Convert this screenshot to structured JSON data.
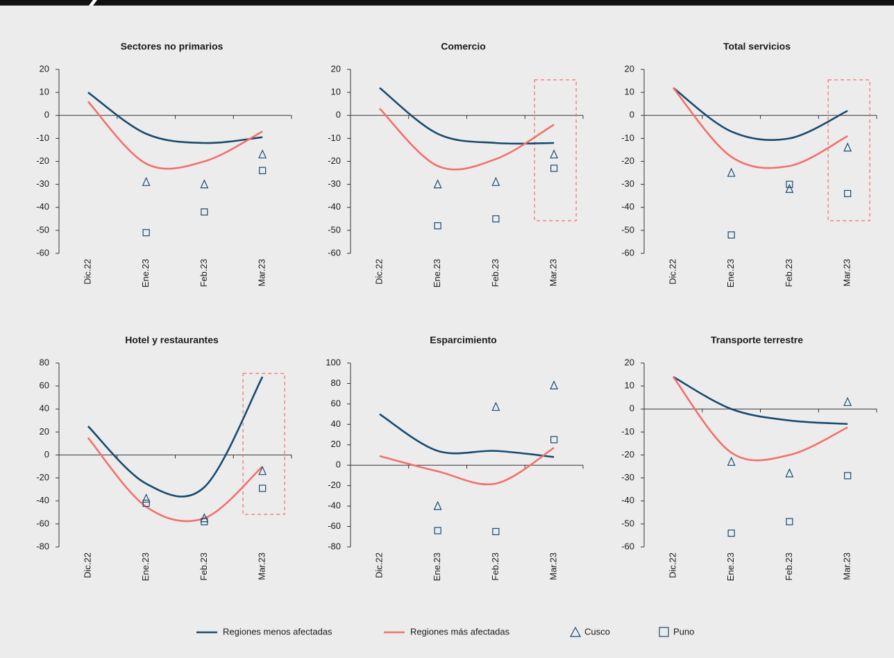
{
  "chart_data": [
    {
      "type": "line",
      "title": "Sectores no primarios",
      "categories": [
        "Dic.22",
        "Ene.23",
        "Feb.23",
        "Mar.23"
      ],
      "series": [
        {
          "name": "Regiones menos afectadas",
          "color": "#174a6e",
          "values": [
            10,
            -8,
            -12,
            -9.5
          ]
        },
        {
          "name": "Regiones más afectadas",
          "color": "#f2706a",
          "values": [
            6,
            -21,
            -20,
            -7
          ]
        },
        {
          "name": "Cusco",
          "color": "#174a6e",
          "marker": "triangle",
          "values": [
            null,
            -29,
            -30,
            -17
          ]
        },
        {
          "name": "Puno",
          "color": "#174a6e",
          "marker": "square",
          "values": [
            null,
            -51,
            -42,
            -24
          ]
        }
      ],
      "ylim": [
        -60,
        20
      ],
      "yticks": [
        -60,
        -50,
        -40,
        -30,
        -20,
        -10,
        0,
        10,
        20
      ]
    },
    {
      "type": "line",
      "title": "Comercio",
      "categories": [
        "Dic.22",
        "Ene.23",
        "Feb.23",
        "Mar.23"
      ],
      "series": [
        {
          "name": "Regiones menos afectadas",
          "color": "#174a6e",
          "values": [
            12,
            -8,
            -12,
            -12
          ]
        },
        {
          "name": "Regiones más afectadas",
          "color": "#f2706a",
          "values": [
            3,
            -22,
            -19,
            -4
          ]
        },
        {
          "name": "Cusco",
          "color": "#174a6e",
          "marker": "triangle",
          "values": [
            null,
            -30,
            -29,
            -17
          ]
        },
        {
          "name": "Puno",
          "color": "#174a6e",
          "marker": "square",
          "values": [
            null,
            -48,
            -45,
            -23
          ]
        }
      ],
      "ylim": [
        -60,
        20
      ],
      "yticks": [
        -60,
        -50,
        -40,
        -30,
        -20,
        -10,
        0,
        10,
        20
      ],
      "highlight": true
    },
    {
      "type": "line",
      "title": "Total servicios",
      "categories": [
        "Dic.22",
        "Ene.23",
        "Feb.23",
        "Mar.23"
      ],
      "series": [
        {
          "name": "Regiones menos afectadas",
          "color": "#174a6e",
          "values": [
            12,
            -7,
            -10,
            2
          ]
        },
        {
          "name": "Regiones más afectadas",
          "color": "#f2706a",
          "values": [
            12,
            -18,
            -22,
            -9
          ]
        },
        {
          "name": "Cusco",
          "color": "#174a6e",
          "marker": "triangle",
          "values": [
            null,
            -25,
            -32,
            -14
          ]
        },
        {
          "name": "Puno",
          "color": "#174a6e",
          "marker": "square",
          "values": [
            null,
            -52,
            -30,
            -34
          ]
        }
      ],
      "ylim": [
        -60,
        20
      ],
      "yticks": [
        -60,
        -50,
        -40,
        -30,
        -20,
        -10,
        0,
        10,
        20
      ],
      "highlight": true
    },
    {
      "type": "line",
      "title": "Hotel y restaurantes",
      "categories": [
        "Dic.22",
        "Ene.23",
        "Feb.23",
        "Mar.23"
      ],
      "series": [
        {
          "name": "Regiones menos afectadas",
          "color": "#174a6e",
          "values": [
            25,
            -25,
            -28,
            68
          ]
        },
        {
          "name": "Regiones más afectadas",
          "color": "#f2706a",
          "values": [
            15,
            -45,
            -55,
            -10
          ]
        },
        {
          "name": "Cusco",
          "color": "#174a6e",
          "marker": "triangle",
          "values": [
            null,
            -38,
            -55,
            -14
          ]
        },
        {
          "name": "Puno",
          "color": "#174a6e",
          "marker": "square",
          "values": [
            null,
            -42,
            -58,
            -29
          ]
        }
      ],
      "ylim": [
        -80,
        80
      ],
      "yticks": [
        -80,
        -60,
        -40,
        -20,
        0,
        20,
        40,
        60,
        80
      ],
      "highlight": true
    },
    {
      "type": "line",
      "title": "Esparcimiento",
      "categories": [
        "Dic.22",
        "Ene.23",
        "Feb.23",
        "Mar.23"
      ],
      "series": [
        {
          "name": "Regiones menos afectadas",
          "color": "#174a6e",
          "values": [
            50,
            14,
            14,
            8
          ]
        },
        {
          "name": "Regiones más afectadas",
          "color": "#f2706a",
          "values": [
            9,
            -6,
            -18,
            17
          ]
        },
        {
          "name": "Cusco",
          "color": "#174a6e",
          "marker": "triangle",
          "values": [
            null,
            -40,
            57,
            78
          ]
        },
        {
          "name": "Puno",
          "color": "#174a6e",
          "marker": "square",
          "values": [
            null,
            -64,
            -65,
            25
          ]
        }
      ],
      "ylim": [
        -80,
        100
      ],
      "yticks": [
        -80,
        -60,
        -40,
        -20,
        0,
        20,
        40,
        60,
        80,
        100
      ]
    },
    {
      "type": "line",
      "title": "Transporte terrestre",
      "categories": [
        "Dic.22",
        "Ene.23",
        "Feb.23",
        "Mar.23"
      ],
      "series": [
        {
          "name": "Regiones menos afectadas",
          "color": "#174a6e",
          "values": [
            14,
            0,
            -5,
            -6.5
          ]
        },
        {
          "name": "Regiones más afectadas",
          "color": "#f2706a",
          "values": [
            14,
            -19,
            -20,
            -8
          ]
        },
        {
          "name": "Cusco",
          "color": "#174a6e",
          "marker": "triangle",
          "values": [
            null,
            -23,
            -28,
            3
          ]
        },
        {
          "name": "Puno",
          "color": "#174a6e",
          "marker": "square",
          "values": [
            null,
            -54,
            -49,
            -29
          ]
        }
      ],
      "ylim": [
        -60,
        20
      ],
      "yticks": [
        -60,
        -50,
        -40,
        -30,
        -20,
        -10,
        0,
        10,
        20
      ]
    }
  ]
}
